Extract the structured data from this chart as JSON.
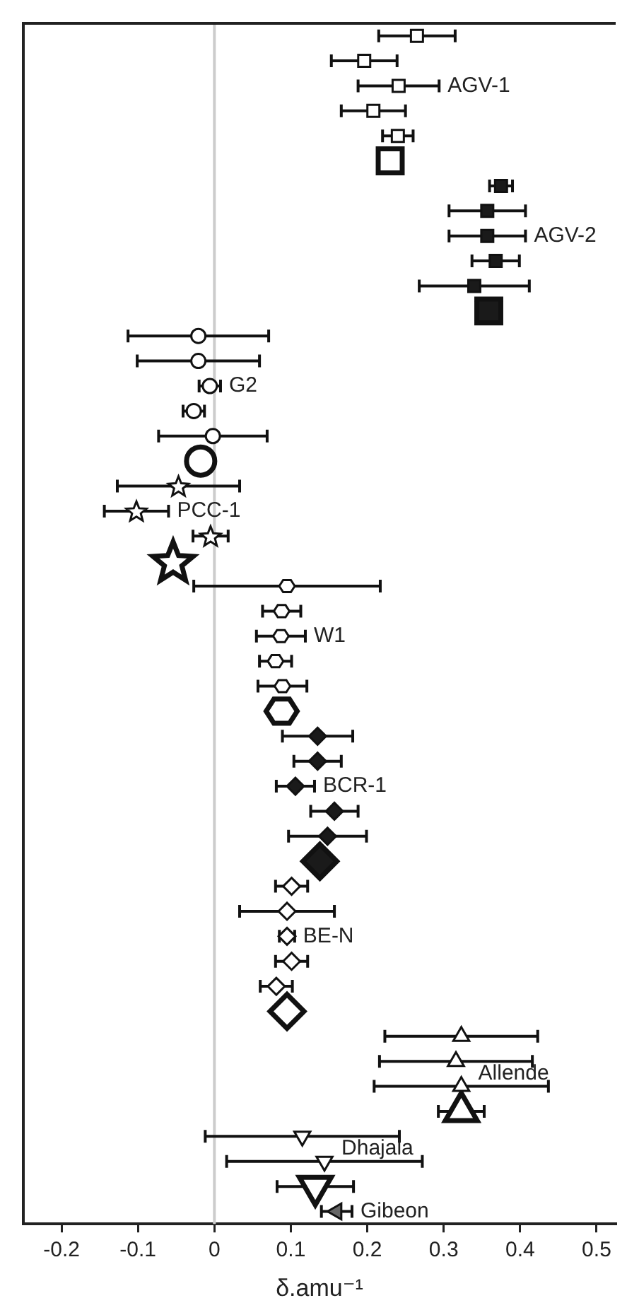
{
  "chart_data": {
    "type": "scatter",
    "orientation": "horizontal",
    "xlabel": "δ.amu⁻¹",
    "xlim": [
      -0.25,
      0.525
    ],
    "xticks": [
      -0.2,
      -0.1,
      0,
      0.1,
      0.2,
      0.3,
      0.4,
      0.5
    ],
    "categories": [
      null,
      null,
      null,
      null,
      null,
      null,
      null,
      null,
      null,
      null,
      null,
      null,
      null,
      null,
      null,
      null,
      null,
      null,
      null,
      null,
      null,
      null,
      null,
      null,
      null,
      null,
      null,
      null,
      null,
      null,
      null,
      null,
      null,
      null,
      null,
      null,
      null,
      null,
      null,
      null,
      null,
      null,
      null,
      null,
      null,
      null,
      null,
      null
    ],
    "ref_lines": [
      {
        "axis": "x",
        "value": 0,
        "color": "#cccccc"
      }
    ],
    "series": [
      {
        "name": "AGV-1",
        "color": "#ffffff",
        "marker": "square",
        "values": [
          0.265,
          0.196,
          0.241,
          0.208,
          0.24,
          null,
          null,
          null,
          null,
          null,
          null,
          null,
          null,
          null,
          null,
          null,
          null,
          null,
          null,
          null,
          null,
          null,
          null,
          null,
          null,
          null,
          null,
          null,
          null,
          null,
          null,
          null,
          null,
          null,
          null,
          null,
          null,
          null,
          null,
          null,
          null,
          null,
          null,
          null,
          null,
          null,
          null,
          null
        ],
        "errors": [
          0.05,
          0.043,
          0.053,
          0.042,
          0.02,
          null,
          null,
          null,
          null,
          null,
          null,
          null,
          null,
          null,
          null,
          null,
          null,
          null,
          null,
          null,
          null,
          null,
          null,
          null,
          null,
          null,
          null,
          null,
          null,
          null,
          null,
          null,
          null,
          null,
          null,
          null,
          null,
          null,
          null,
          null,
          null,
          null,
          null,
          null,
          null,
          null,
          null,
          null
        ]
      },
      {
        "color": "#ffffff",
        "marker": "square",
        "values": [
          null,
          null,
          null,
          null,
          null,
          0.23,
          null,
          null,
          null,
          null,
          null,
          null,
          null,
          null,
          null,
          null,
          null,
          null,
          null,
          null,
          null,
          null,
          null,
          null,
          null,
          null,
          null,
          null,
          null,
          null,
          null,
          null,
          null,
          null,
          null,
          null,
          null,
          null,
          null,
          null,
          null,
          null,
          null,
          null,
          null,
          null,
          null,
          null
        ],
        "errors": [
          null,
          null,
          null,
          null,
          null,
          0.015,
          null,
          null,
          null,
          null,
          null,
          null,
          null,
          null,
          null,
          null,
          null,
          null,
          null,
          null,
          null,
          null,
          null,
          null,
          null,
          null,
          null,
          null,
          null,
          null,
          null,
          null,
          null,
          null,
          null,
          null,
          null,
          null,
          null,
          null,
          null,
          null,
          null,
          null,
          null,
          null,
          null,
          null
        ]
      },
      {
        "name": "AGV-2",
        "color": "#1a1a1a",
        "marker": "square",
        "values": [
          null,
          null,
          null,
          null,
          null,
          null,
          0.375,
          0.357,
          0.357,
          0.368,
          0.34,
          null,
          null,
          null,
          null,
          null,
          null,
          null,
          null,
          null,
          null,
          null,
          null,
          null,
          null,
          null,
          null,
          null,
          null,
          null,
          null,
          null,
          null,
          null,
          null,
          null,
          null,
          null,
          null,
          null,
          null,
          null,
          null,
          null,
          null,
          null,
          null,
          null
        ],
        "errors": [
          null,
          null,
          null,
          null,
          null,
          null,
          0.015,
          0.05,
          0.05,
          0.031,
          0.072,
          null,
          null,
          null,
          null,
          null,
          null,
          null,
          null,
          null,
          null,
          null,
          null,
          null,
          null,
          null,
          null,
          null,
          null,
          null,
          null,
          null,
          null,
          null,
          null,
          null,
          null,
          null,
          null,
          null,
          null,
          null,
          null,
          null,
          null,
          null,
          null,
          null
        ]
      },
      {
        "color": "#1a1a1a",
        "marker": "square",
        "values": [
          null,
          null,
          null,
          null,
          null,
          null,
          null,
          null,
          null,
          null,
          null,
          0.359,
          null,
          null,
          null,
          null,
          null,
          null,
          null,
          null,
          null,
          null,
          null,
          null,
          null,
          null,
          null,
          null,
          null,
          null,
          null,
          null,
          null,
          null,
          null,
          null,
          null,
          null,
          null,
          null,
          null,
          null,
          null,
          null,
          null,
          null,
          null,
          null
        ]
      },
      {
        "name": "G2",
        "color": "#ffffff",
        "marker": "circle",
        "values": [
          null,
          null,
          null,
          null,
          null,
          null,
          null,
          null,
          null,
          null,
          null,
          null,
          -0.021,
          -0.021,
          -0.006,
          -0.027,
          -0.002,
          null,
          null,
          null,
          null,
          null,
          null,
          null,
          null,
          null,
          null,
          null,
          null,
          null,
          null,
          null,
          null,
          null,
          null,
          null,
          null,
          null,
          null,
          null,
          null,
          null,
          null,
          null,
          null,
          null,
          null,
          null
        ],
        "errors": [
          null,
          null,
          null,
          null,
          null,
          null,
          null,
          null,
          null,
          null,
          null,
          null,
          0.092,
          0.08,
          0.014,
          0.014,
          0.071,
          null,
          null,
          null,
          null,
          null,
          null,
          null,
          null,
          null,
          null,
          null,
          null,
          null,
          null,
          null,
          null,
          null,
          null,
          null,
          null,
          null,
          null,
          null,
          null,
          null,
          null,
          null,
          null,
          null,
          null,
          null
        ]
      },
      {
        "color": "#ffffff",
        "marker": "circle",
        "values": [
          null,
          null,
          null,
          null,
          null,
          null,
          null,
          null,
          null,
          null,
          null,
          null,
          null,
          null,
          null,
          null,
          null,
          -0.018,
          null,
          null,
          null,
          null,
          null,
          null,
          null,
          null,
          null,
          null,
          null,
          null,
          null,
          null,
          null,
          null,
          null,
          null,
          null,
          null,
          null,
          null,
          null,
          null,
          null,
          null,
          null,
          null,
          null,
          null
        ]
      },
      {
        "name": "PCC-1",
        "color": "#ffffff",
        "marker": "star",
        "values": [
          null,
          null,
          null,
          null,
          null,
          null,
          null,
          null,
          null,
          null,
          null,
          null,
          null,
          null,
          null,
          null,
          null,
          null,
          -0.047,
          -0.102,
          -0.005,
          null,
          null,
          null,
          null,
          null,
          null,
          null,
          null,
          null,
          null,
          null,
          null,
          null,
          null,
          null,
          null,
          null,
          null,
          null,
          null,
          null,
          null,
          null,
          null,
          null,
          null,
          null
        ],
        "errors": [
          null,
          null,
          null,
          null,
          null,
          null,
          null,
          null,
          null,
          null,
          null,
          null,
          null,
          null,
          null,
          null,
          null,
          null,
          0.08,
          0.042,
          0.023,
          null,
          null,
          null,
          null,
          null,
          null,
          null,
          null,
          null,
          null,
          null,
          null,
          null,
          null,
          null,
          null,
          null,
          null,
          null,
          null,
          null,
          null,
          null,
          null,
          null,
          null,
          null
        ]
      },
      {
        "color": "#ffffff",
        "marker": "star",
        "values": [
          null,
          null,
          null,
          null,
          null,
          null,
          null,
          null,
          null,
          null,
          null,
          null,
          null,
          null,
          null,
          null,
          null,
          null,
          null,
          null,
          null,
          -0.054,
          null,
          null,
          null,
          null,
          null,
          null,
          null,
          null,
          null,
          null,
          null,
          null,
          null,
          null,
          null,
          null,
          null,
          null,
          null,
          null,
          null,
          null,
          null,
          null,
          null,
          null
        ]
      },
      {
        "name": "W1",
        "color": "#ffffff",
        "values": [
          null,
          null,
          null,
          null,
          null,
          null,
          null,
          null,
          null,
          null,
          null,
          null,
          null,
          null,
          null,
          null,
          null,
          null,
          null,
          null,
          null,
          null,
          0.095,
          0.088,
          0.087,
          0.08,
          0.089,
          null,
          null,
          null,
          null,
          null,
          null,
          null,
          null,
          null,
          null,
          null,
          null,
          null,
          null,
          null,
          null,
          null,
          null,
          null,
          null,
          null
        ],
        "errors": [
          null,
          null,
          null,
          null,
          null,
          null,
          null,
          null,
          null,
          null,
          null,
          null,
          null,
          null,
          null,
          null,
          null,
          null,
          null,
          null,
          null,
          null,
          0.122,
          0.025,
          0.032,
          0.021,
          0.032,
          null,
          null,
          null,
          null,
          null,
          null,
          null,
          null,
          null,
          null,
          null,
          null,
          null,
          null,
          null,
          null,
          null,
          null,
          null,
          null,
          null
        ]
      },
      {
        "color": "#ffffff",
        "values": [
          null,
          null,
          null,
          null,
          null,
          null,
          null,
          null,
          null,
          null,
          null,
          null,
          null,
          null,
          null,
          null,
          null,
          null,
          null,
          null,
          null,
          null,
          null,
          null,
          null,
          null,
          null,
          0.088,
          null,
          null,
          null,
          null,
          null,
          null,
          null,
          null,
          null,
          null,
          null,
          null,
          null,
          null,
          null,
          null,
          null,
          null,
          null,
          null
        ]
      },
      {
        "name": "BCR-1",
        "color": "#1a1a1a",
        "marker": "diamond",
        "values": [
          null,
          null,
          null,
          null,
          null,
          null,
          null,
          null,
          null,
          null,
          null,
          null,
          null,
          null,
          null,
          null,
          null,
          null,
          null,
          null,
          null,
          null,
          null,
          null,
          null,
          null,
          null,
          null,
          0.135,
          0.135,
          0.106,
          0.157,
          0.148,
          null,
          null,
          null,
          null,
          null,
          null,
          null,
          null,
          null,
          null,
          null,
          null,
          null,
          null,
          null
        ],
        "errors": [
          null,
          null,
          null,
          null,
          null,
          null,
          null,
          null,
          null,
          null,
          null,
          null,
          null,
          null,
          null,
          null,
          null,
          null,
          null,
          null,
          null,
          null,
          null,
          null,
          null,
          null,
          null,
          null,
          0.046,
          0.031,
          0.025,
          0.031,
          0.051,
          null,
          null,
          null,
          null,
          null,
          null,
          null,
          null,
          null,
          null,
          null,
          null,
          null,
          null,
          null
        ]
      },
      {
        "color": "#1a1a1a",
        "marker": "diamond",
        "values": [
          null,
          null,
          null,
          null,
          null,
          null,
          null,
          null,
          null,
          null,
          null,
          null,
          null,
          null,
          null,
          null,
          null,
          null,
          null,
          null,
          null,
          null,
          null,
          null,
          null,
          null,
          null,
          null,
          null,
          null,
          null,
          null,
          null,
          0.138,
          null,
          null,
          null,
          null,
          null,
          null,
          null,
          null,
          null,
          null,
          null,
          null,
          null,
          null
        ]
      },
      {
        "name": "BE-N",
        "color": "#ffffff",
        "marker": "diamond",
        "values": [
          null,
          null,
          null,
          null,
          null,
          null,
          null,
          null,
          null,
          null,
          null,
          null,
          null,
          null,
          null,
          null,
          null,
          null,
          null,
          null,
          null,
          null,
          null,
          null,
          null,
          null,
          null,
          null,
          null,
          null,
          null,
          null,
          null,
          null,
          0.101,
          0.095,
          0.095,
          0.101,
          0.081,
          null,
          null,
          null,
          null,
          null,
          null,
          null,
          null,
          null
        ],
        "errors": [
          null,
          null,
          null,
          null,
          null,
          null,
          null,
          null,
          null,
          null,
          null,
          null,
          null,
          null,
          null,
          null,
          null,
          null,
          null,
          null,
          null,
          null,
          null,
          null,
          null,
          null,
          null,
          null,
          null,
          null,
          null,
          null,
          null,
          null,
          0.021,
          0.062,
          0.01,
          0.021,
          0.021,
          null,
          null,
          null,
          null,
          null,
          null,
          null,
          null,
          null
        ]
      },
      {
        "color": "#ffffff",
        "marker": "diamond",
        "values": [
          null,
          null,
          null,
          null,
          null,
          null,
          null,
          null,
          null,
          null,
          null,
          null,
          null,
          null,
          null,
          null,
          null,
          null,
          null,
          null,
          null,
          null,
          null,
          null,
          null,
          null,
          null,
          null,
          null,
          null,
          null,
          null,
          null,
          null,
          null,
          null,
          null,
          null,
          null,
          0.095,
          null,
          null,
          null,
          null,
          null,
          null,
          null,
          null
        ]
      },
      {
        "name": "Allende",
        "color": "#ffffff",
        "marker": "triangle",
        "values": [
          null,
          null,
          null,
          null,
          null,
          null,
          null,
          null,
          null,
          null,
          null,
          null,
          null,
          null,
          null,
          null,
          null,
          null,
          null,
          null,
          null,
          null,
          null,
          null,
          null,
          null,
          null,
          null,
          null,
          null,
          null,
          null,
          null,
          null,
          null,
          null,
          null,
          null,
          null,
          null,
          0.323,
          0.316,
          0.323,
          null,
          null,
          null,
          null,
          null
        ],
        "errors": [
          null,
          null,
          null,
          null,
          null,
          null,
          null,
          null,
          null,
          null,
          null,
          null,
          null,
          null,
          null,
          null,
          null,
          null,
          null,
          null,
          null,
          null,
          null,
          null,
          null,
          null,
          null,
          null,
          null,
          null,
          null,
          null,
          null,
          null,
          null,
          null,
          null,
          null,
          null,
          null,
          0.1,
          0.1,
          0.114,
          null,
          null,
          null,
          null,
          null
        ]
      },
      {
        "color": "#ffffff",
        "marker": "triangle",
        "values": [
          null,
          null,
          null,
          null,
          null,
          null,
          null,
          null,
          null,
          null,
          null,
          null,
          null,
          null,
          null,
          null,
          null,
          null,
          null,
          null,
          null,
          null,
          null,
          null,
          null,
          null,
          null,
          null,
          null,
          null,
          null,
          null,
          null,
          null,
          null,
          null,
          null,
          null,
          null,
          null,
          null,
          null,
          null,
          0.323,
          null,
          null,
          null,
          null
        ],
        "errors": [
          null,
          null,
          null,
          null,
          null,
          null,
          null,
          null,
          null,
          null,
          null,
          null,
          null,
          null,
          null,
          null,
          null,
          null,
          null,
          null,
          null,
          null,
          null,
          null,
          null,
          null,
          null,
          null,
          null,
          null,
          null,
          null,
          null,
          null,
          null,
          null,
          null,
          null,
          null,
          null,
          null,
          null,
          null,
          0.03,
          null,
          null,
          null,
          null
        ]
      },
      {
        "name": "Dhajala",
        "color": "#ffffff",
        "marker": "triangle-down",
        "values": [
          null,
          null,
          null,
          null,
          null,
          null,
          null,
          null,
          null,
          null,
          null,
          null,
          null,
          null,
          null,
          null,
          null,
          null,
          null,
          null,
          null,
          null,
          null,
          null,
          null,
          null,
          null,
          null,
          null,
          null,
          null,
          null,
          null,
          null,
          null,
          null,
          null,
          null,
          null,
          null,
          null,
          null,
          null,
          null,
          0.115,
          0.144,
          null,
          null
        ],
        "errors": [
          null,
          null,
          null,
          null,
          null,
          null,
          null,
          null,
          null,
          null,
          null,
          null,
          null,
          null,
          null,
          null,
          null,
          null,
          null,
          null,
          null,
          null,
          null,
          null,
          null,
          null,
          null,
          null,
          null,
          null,
          null,
          null,
          null,
          null,
          null,
          null,
          null,
          null,
          null,
          null,
          null,
          null,
          null,
          null,
          0.127,
          0.128,
          null,
          null
        ]
      },
      {
        "color": "#ffffff",
        "marker": "triangle-down",
        "values": [
          null,
          null,
          null,
          null,
          null,
          null,
          null,
          null,
          null,
          null,
          null,
          null,
          null,
          null,
          null,
          null,
          null,
          null,
          null,
          null,
          null,
          null,
          null,
          null,
          null,
          null,
          null,
          null,
          null,
          null,
          null,
          null,
          null,
          null,
          null,
          null,
          null,
          null,
          null,
          null,
          null,
          null,
          null,
          null,
          null,
          null,
          0.132,
          null
        ],
        "errors": [
          null,
          null,
          null,
          null,
          null,
          null,
          null,
          null,
          null,
          null,
          null,
          null,
          null,
          null,
          null,
          null,
          null,
          null,
          null,
          null,
          null,
          null,
          null,
          null,
          null,
          null,
          null,
          null,
          null,
          null,
          null,
          null,
          null,
          null,
          null,
          null,
          null,
          null,
          null,
          null,
          null,
          null,
          null,
          null,
          null,
          null,
          0.05,
          null
        ]
      },
      {
        "name": "Gibeon",
        "color": "#666666",
        "marker": "triangle-left",
        "values": [
          null,
          null,
          null,
          null,
          null,
          null,
          null,
          null,
          null,
          null,
          null,
          null,
          null,
          null,
          null,
          null,
          null,
          null,
          null,
          null,
          null,
          null,
          null,
          null,
          null,
          null,
          null,
          null,
          null,
          null,
          null,
          null,
          null,
          null,
          null,
          null,
          null,
          null,
          null,
          null,
          null,
          null,
          null,
          null,
          null,
          null,
          null,
          0.16
        ],
        "errors": [
          null,
          null,
          null,
          null,
          null,
          null,
          null,
          null,
          null,
          null,
          null,
          null,
          null,
          null,
          null,
          null,
          null,
          null,
          null,
          null,
          null,
          null,
          null,
          null,
          null,
          null,
          null,
          null,
          null,
          null,
          null,
          null,
          null,
          null,
          null,
          null,
          null,
          null,
          null,
          null,
          null,
          null,
          null,
          null,
          null,
          null,
          null,
          0.02
        ]
      }
    ]
  }
}
